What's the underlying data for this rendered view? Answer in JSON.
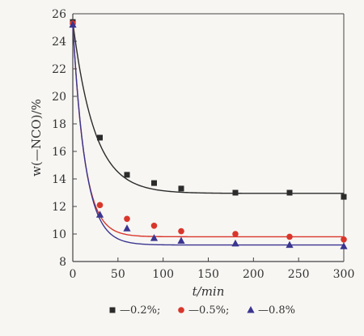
{
  "chart_data": {
    "type": "line",
    "xlabel": "t/min",
    "ylabel": "w(—NCO)/%",
    "xlim": [
      0,
      300
    ],
    "ylim": [
      8,
      26
    ],
    "x_ticks": [
      0,
      50,
      100,
      150,
      200,
      250,
      300
    ],
    "y_ticks": [
      8,
      10,
      12,
      14,
      16,
      18,
      20,
      22,
      24,
      26
    ],
    "grid": false,
    "legend_position": "bottom",
    "series": [
      {
        "name": "—0.2%;",
        "marker": "square",
        "color": "#2b2b2b",
        "x": [
          0,
          30,
          60,
          90,
          120,
          180,
          240,
          300
        ],
        "y": [
          25.4,
          17.0,
          14.3,
          13.7,
          13.3,
          13.0,
          13.0,
          12.7
        ]
      },
      {
        "name": "—0.5%;",
        "marker": "circle",
        "color": "#d9362b",
        "x": [
          0,
          30,
          60,
          90,
          120,
          180,
          240,
          300
        ],
        "y": [
          25.3,
          12.1,
          11.1,
          10.6,
          10.2,
          10.0,
          9.8,
          9.6
        ]
      },
      {
        "name": "—0.8%",
        "marker": "triangle",
        "color": "#3a3590",
        "x": [
          0,
          30,
          60,
          90,
          120,
          180,
          240,
          300
        ],
        "y": [
          25.2,
          11.4,
          10.4,
          9.7,
          9.5,
          9.3,
          9.2,
          9.1
        ]
      }
    ],
    "fit_curves": [
      {
        "series": "—0.2%;",
        "color": "#2b2b2b",
        "asymptote": 12.95,
        "start": 25.4,
        "tau": 24
      },
      {
        "series": "—0.5%;",
        "color": "#d9362b",
        "asymptote": 9.8,
        "start": 25.3,
        "tau": 13
      },
      {
        "series": "—0.8%",
        "color": "#3a3590",
        "asymptote": 9.2,
        "start": 25.2,
        "tau": 14
      }
    ]
  }
}
